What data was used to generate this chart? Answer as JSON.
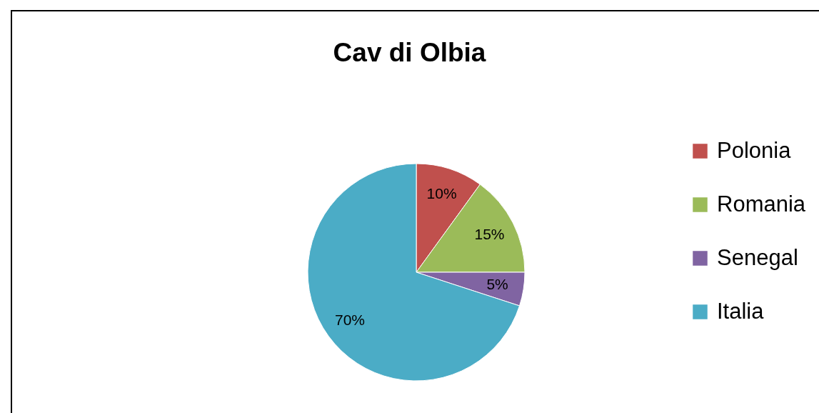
{
  "chart_data": {
    "type": "pie",
    "title": "Cav di Olbia",
    "categories": [
      "Polonia",
      "Romania",
      "Senegal",
      "Italia"
    ],
    "values": [
      10,
      15,
      5,
      70
    ],
    "colors": [
      "#c0504d",
      "#9bbb59",
      "#8064a2",
      "#4bacc6"
    ],
    "value_labels": [
      "10%",
      "15%",
      "5%",
      "70%"
    ],
    "legend": "right"
  }
}
